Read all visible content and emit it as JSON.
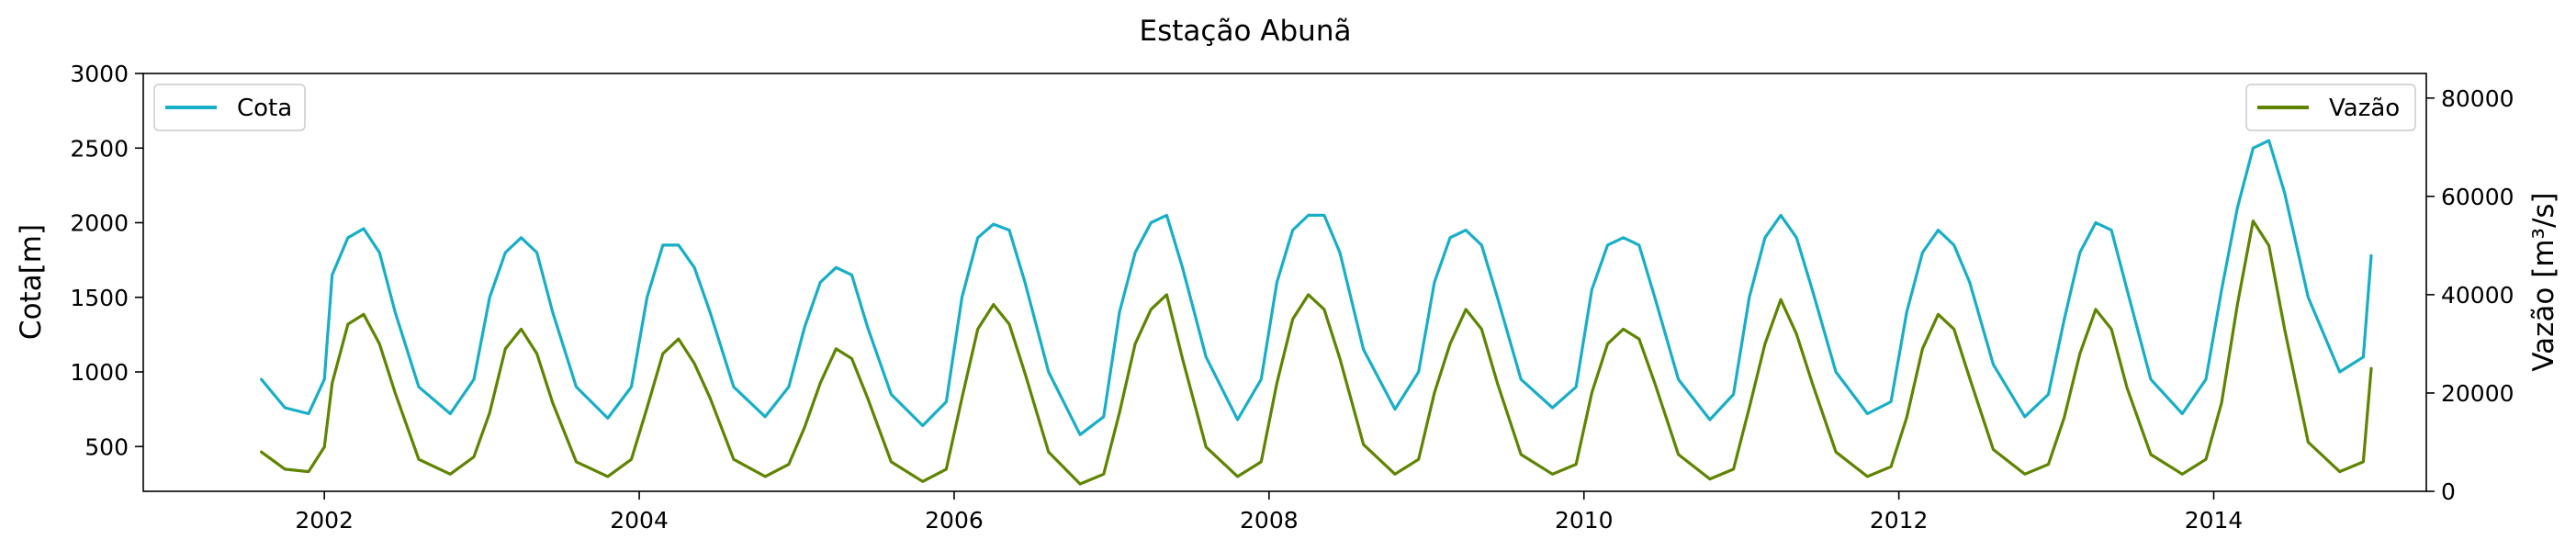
{
  "chart_data": {
    "type": "line",
    "title": "Estação Abunã",
    "xlabel": "",
    "ylabel_left": "Cota[m]",
    "ylabel_right": "Vazão [m³/s]",
    "x_ticks": [
      "2002",
      "2004",
      "2006",
      "2008",
      "2010",
      "2012",
      "2014"
    ],
    "x_range": [
      2000.85,
      2015.35
    ],
    "y_left_ticks": [
      500,
      1000,
      1500,
      2000,
      2500,
      3000
    ],
    "y_left_range": [
      200,
      3000
    ],
    "y_right_ticks": [
      0,
      20000,
      40000,
      60000,
      80000
    ],
    "y_right_range": [
      0,
      85000
    ],
    "grid": false,
    "legend_left": {
      "placement": "top-left",
      "label": "Cota"
    },
    "legend_right": {
      "placement": "top-right",
      "label": "Vazão"
    },
    "colors": {
      "cota": "#17aec6",
      "vazao": "#5e8400"
    },
    "series": [
      {
        "name": "Cota",
        "axis": "left",
        "color": "#17aec6",
        "x": [
          2001.6,
          2001.75,
          2001.9,
          2002.0,
          2002.05,
          2002.15,
          2002.25,
          2002.35,
          2002.45,
          2002.6,
          2002.8,
          2002.95,
          2003.05,
          2003.15,
          2003.25,
          2003.35,
          2003.45,
          2003.6,
          2003.8,
          2003.95,
          2004.05,
          2004.15,
          2004.25,
          2004.35,
          2004.45,
          2004.6,
          2004.8,
          2004.95,
          2005.05,
          2005.15,
          2005.25,
          2005.35,
          2005.45,
          2005.6,
          2005.8,
          2005.95,
          2006.05,
          2006.15,
          2006.25,
          2006.35,
          2006.45,
          2006.6,
          2006.8,
          2006.95,
          2007.05,
          2007.15,
          2007.25,
          2007.35,
          2007.45,
          2007.6,
          2007.8,
          2007.95,
          2008.05,
          2008.15,
          2008.25,
          2008.35,
          2008.45,
          2008.6,
          2008.8,
          2008.95,
          2009.05,
          2009.15,
          2009.25,
          2009.35,
          2009.45,
          2009.6,
          2009.8,
          2009.95,
          2010.05,
          2010.15,
          2010.25,
          2010.35,
          2010.45,
          2010.6,
          2010.8,
          2010.95,
          2011.05,
          2011.15,
          2011.25,
          2011.35,
          2011.45,
          2011.6,
          2011.8,
          2011.95,
          2012.05,
          2012.15,
          2012.25,
          2012.35,
          2012.45,
          2012.6,
          2012.8,
          2012.95,
          2013.05,
          2013.15,
          2013.25,
          2013.35,
          2013.45,
          2013.6,
          2013.8,
          2013.95,
          2014.05,
          2014.15,
          2014.25,
          2014.35,
          2014.45,
          2014.6,
          2014.8,
          2014.95,
          2015.0
        ],
        "values": [
          950,
          760,
          720,
          950,
          1650,
          1900,
          1960,
          1800,
          1400,
          900,
          720,
          950,
          1500,
          1800,
          1900,
          1800,
          1400,
          900,
          690,
          900,
          1500,
          1850,
          1850,
          1700,
          1400,
          900,
          700,
          900,
          1300,
          1600,
          1700,
          1650,
          1300,
          850,
          640,
          800,
          1500,
          1900,
          1990,
          1950,
          1600,
          1000,
          580,
          700,
          1400,
          1800,
          2000,
          2050,
          1700,
          1100,
          680,
          950,
          1600,
          1950,
          2050,
          2050,
          1800,
          1150,
          750,
          1000,
          1600,
          1900,
          1950,
          1850,
          1500,
          950,
          760,
          900,
          1550,
          1850,
          1900,
          1850,
          1500,
          950,
          680,
          850,
          1500,
          1900,
          2050,
          1900,
          1550,
          1000,
          720,
          800,
          1400,
          1800,
          1950,
          1850,
          1600,
          1050,
          700,
          850,
          1350,
          1800,
          2000,
          1950,
          1550,
          950,
          720,
          950,
          1550,
          2100,
          2500,
          2550,
          2200,
          1500,
          1000,
          1100,
          1780
        ]
      },
      {
        "name": "Vazão",
        "axis": "right",
        "color": "#5e8400",
        "x": [
          2001.6,
          2001.75,
          2001.9,
          2002.0,
          2002.05,
          2002.15,
          2002.25,
          2002.35,
          2002.45,
          2002.6,
          2002.8,
          2002.95,
          2003.05,
          2003.15,
          2003.25,
          2003.35,
          2003.45,
          2003.6,
          2003.8,
          2003.95,
          2004.05,
          2004.15,
          2004.25,
          2004.35,
          2004.45,
          2004.6,
          2004.8,
          2004.95,
          2005.05,
          2005.15,
          2005.25,
          2005.35,
          2005.45,
          2005.6,
          2005.8,
          2005.95,
          2006.05,
          2006.15,
          2006.25,
          2006.35,
          2006.45,
          2006.6,
          2006.8,
          2006.95,
          2007.05,
          2007.15,
          2007.25,
          2007.35,
          2007.45,
          2007.6,
          2007.8,
          2007.95,
          2008.05,
          2008.15,
          2008.25,
          2008.35,
          2008.45,
          2008.6,
          2008.8,
          2008.95,
          2009.05,
          2009.15,
          2009.25,
          2009.35,
          2009.45,
          2009.6,
          2009.8,
          2009.95,
          2010.05,
          2010.15,
          2010.25,
          2010.35,
          2010.45,
          2010.6,
          2010.8,
          2010.95,
          2011.05,
          2011.15,
          2011.25,
          2011.35,
          2011.45,
          2011.6,
          2011.8,
          2011.95,
          2012.05,
          2012.15,
          2012.25,
          2012.35,
          2012.45,
          2012.6,
          2012.8,
          2012.95,
          2013.05,
          2013.15,
          2013.25,
          2013.35,
          2013.45,
          2013.6,
          2013.8,
          2013.95,
          2014.05,
          2014.15,
          2014.25,
          2014.35,
          2014.45,
          2014.6,
          2014.8,
          2014.95,
          2015.0
        ],
        "values": [
          8000,
          4500,
          4000,
          9000,
          22000,
          34000,
          36000,
          30000,
          20000,
          6500,
          3500,
          7000,
          16000,
          29000,
          33000,
          28000,
          18000,
          6000,
          3000,
          6500,
          17000,
          28000,
          31000,
          26000,
          19000,
          6500,
          3000,
          5500,
          13000,
          22000,
          29000,
          27000,
          19000,
          6000,
          2000,
          4500,
          19000,
          33000,
          38000,
          34000,
          24000,
          8000,
          1500,
          3500,
          16000,
          30000,
          37000,
          40000,
          27000,
          9000,
          3000,
          6000,
          22000,
          35000,
          40000,
          37000,
          27000,
          9500,
          3500,
          6500,
          20000,
          30000,
          37000,
          33000,
          22000,
          7500,
          3500,
          5500,
          20000,
          30000,
          33000,
          31000,
          22000,
          7500,
          2500,
          4500,
          17000,
          30000,
          39000,
          32000,
          22000,
          8000,
          3000,
          5000,
          15000,
          29000,
          36000,
          33000,
          23000,
          8500,
          3500,
          5500,
          15000,
          28000,
          37000,
          33000,
          21000,
          7500,
          3500,
          6500,
          18000,
          38000,
          55000,
          50000,
          33000,
          10000,
          4000,
          6000,
          25000
        ]
      }
    ]
  }
}
